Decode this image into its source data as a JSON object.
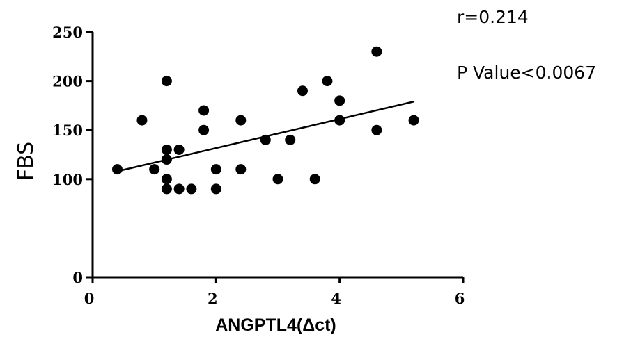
{
  "chart_data": {
    "type": "scatter",
    "xlabel": "ANGPTL4(Δct)",
    "ylabel": "FBS",
    "xlim": [
      0,
      6
    ],
    "ylim": [
      0,
      250
    ],
    "xticks": [
      0,
      2,
      4,
      6
    ],
    "yticks": [
      0,
      100,
      150,
      200,
      250
    ],
    "grid": false,
    "points": [
      {
        "x": 0.4,
        "y": 110
      },
      {
        "x": 0.8,
        "y": 160
      },
      {
        "x": 1.0,
        "y": 110
      },
      {
        "x": 1.2,
        "y": 200
      },
      {
        "x": 1.2,
        "y": 130
      },
      {
        "x": 1.2,
        "y": 120
      },
      {
        "x": 1.2,
        "y": 100
      },
      {
        "x": 1.2,
        "y": 90
      },
      {
        "x": 1.4,
        "y": 130
      },
      {
        "x": 1.4,
        "y": 90
      },
      {
        "x": 1.6,
        "y": 90
      },
      {
        "x": 1.8,
        "y": 170
      },
      {
        "x": 1.8,
        "y": 150
      },
      {
        "x": 2.0,
        "y": 110
      },
      {
        "x": 2.0,
        "y": 90
      },
      {
        "x": 2.4,
        "y": 160
      },
      {
        "x": 2.4,
        "y": 110
      },
      {
        "x": 2.8,
        "y": 140
      },
      {
        "x": 3.0,
        "y": 100
      },
      {
        "x": 3.2,
        "y": 140
      },
      {
        "x": 3.4,
        "y": 190
      },
      {
        "x": 3.6,
        "y": 100
      },
      {
        "x": 3.8,
        "y": 200
      },
      {
        "x": 4.0,
        "y": 180
      },
      {
        "x": 4.0,
        "y": 160
      },
      {
        "x": 4.6,
        "y": 230
      },
      {
        "x": 4.6,
        "y": 150
      },
      {
        "x": 5.2,
        "y": 160
      }
    ],
    "trendline": {
      "x": [
        0.4,
        5.2
      ],
      "y": [
        108,
        179
      ]
    },
    "annotations": [
      "r=0.214",
      "P Value<0.0067"
    ]
  }
}
